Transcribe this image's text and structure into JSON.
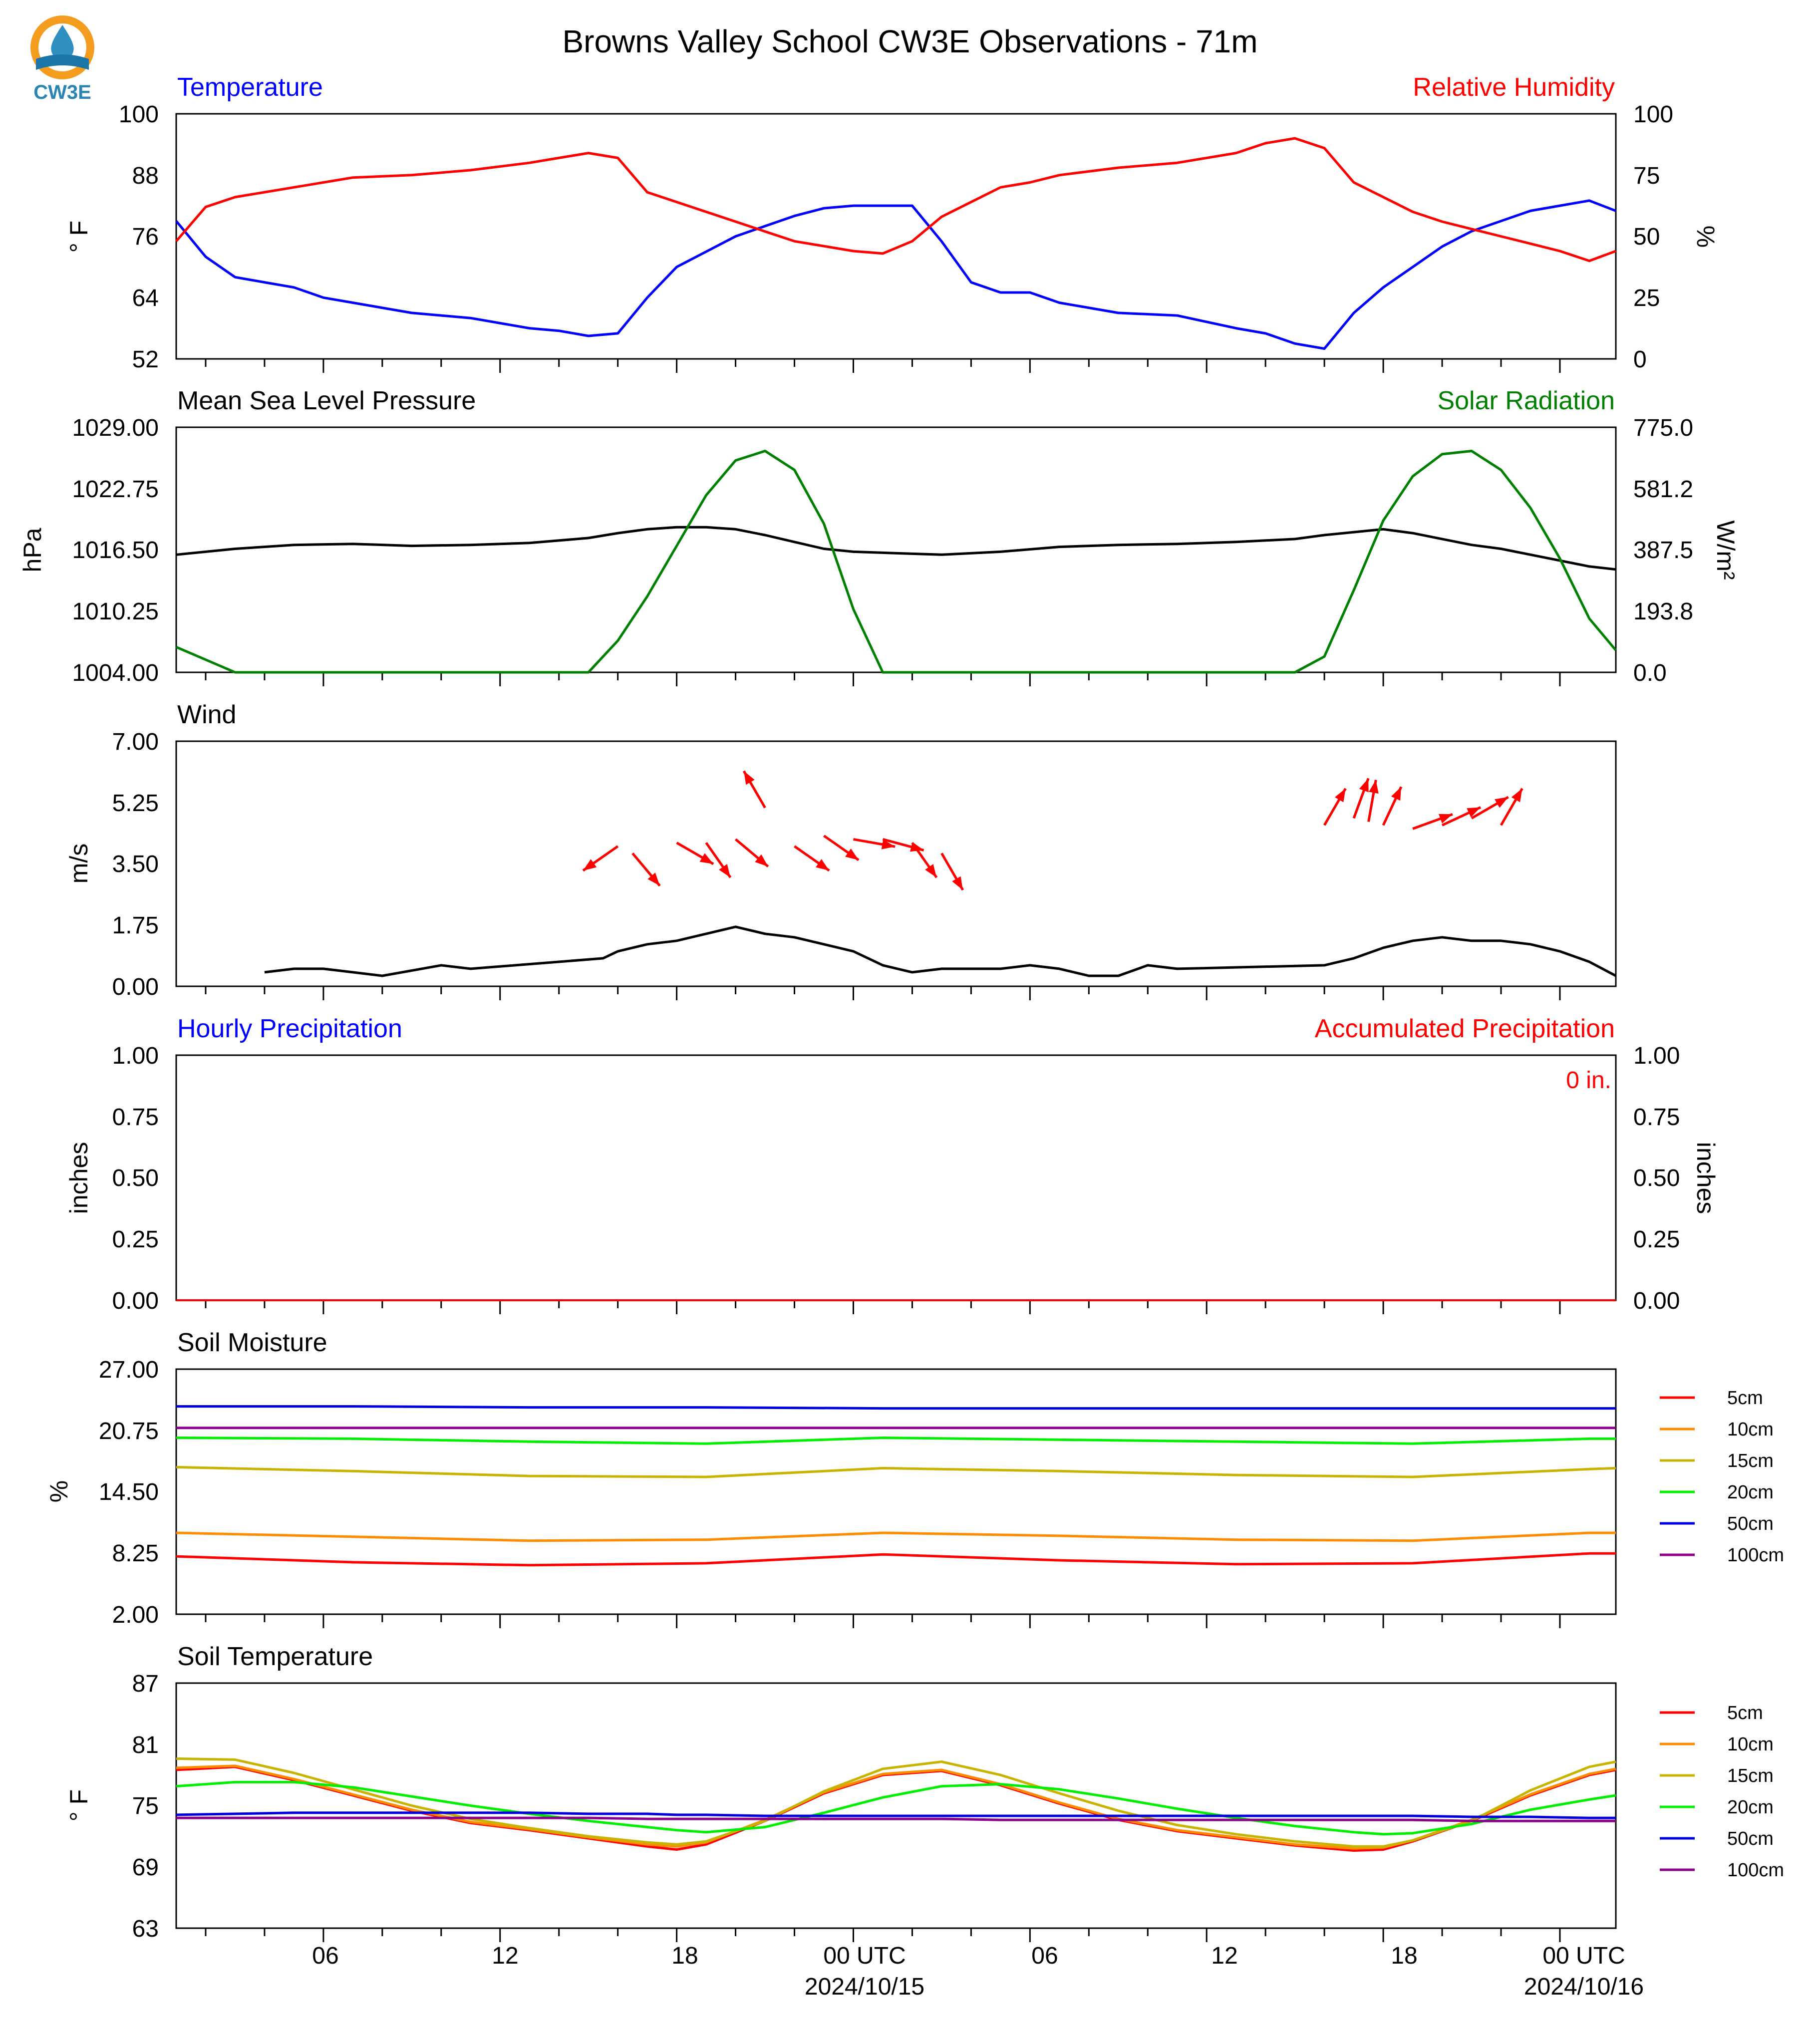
{
  "title": "Browns Valley School CW3E Observations - 71m",
  "logo": {
    "text": "CW3E",
    "colors": {
      "sun": "#f39c1e",
      "drop": "#2f8fbf",
      "wave": "#1b75a8",
      "text": "#2b85b4"
    }
  },
  "colors": {
    "blue": "#0000ff",
    "red": "#ff0000",
    "green": "#008000",
    "black": "#000000"
  },
  "x_axis": {
    "tick_labels": [
      "06",
      "12",
      "18",
      "00 UTC",
      "06",
      "12",
      "18",
      "00 UTC"
    ],
    "date_labels": [
      "2024/10/15",
      "2024/10/16"
    ]
  },
  "panels": {
    "temp_rh": {
      "left_title": "Temperature",
      "right_title": "Relative Humidity",
      "left_ylabel": "° F",
      "right_ylabel": "%",
      "left_ticks": [
        "52",
        "64",
        "76",
        "88",
        "100"
      ],
      "right_ticks": [
        "0",
        "25",
        "50",
        "75",
        "100"
      ]
    },
    "pressure_solar": {
      "left_title": "Mean Sea Level Pressure",
      "right_title": "Solar Radiation",
      "left_ylabel": "hPa",
      "right_ylabel": "W/m²",
      "left_ticks": [
        "1004.00",
        "1010.25",
        "1016.50",
        "1022.75",
        "1029.00"
      ],
      "right_ticks": [
        "0.0",
        "193.8",
        "387.5",
        "581.2",
        "775.0"
      ]
    },
    "wind": {
      "title": "Wind",
      "ylabel": "m/s",
      "ticks": [
        "0.00",
        "1.75",
        "3.50",
        "5.25",
        "7.00"
      ]
    },
    "precip": {
      "left_title": "Hourly Precipitation",
      "right_title": "Accumulated Precipitation",
      "left_ylabel": "inches",
      "right_ylabel": "inches",
      "left_ticks": [
        "0.00",
        "0.25",
        "0.50",
        "0.75",
        "1.00"
      ],
      "right_ticks": [
        "0.00",
        "0.25",
        "0.50",
        "0.75",
        "1.00"
      ],
      "annotation": "0 in."
    },
    "soil_moisture": {
      "title": "Soil Moisture",
      "ylabel": "%",
      "ticks": [
        "2.00",
        "8.25",
        "14.50",
        "20.75",
        "27.00"
      ],
      "legend": [
        "5cm",
        "10cm",
        "15cm",
        "20cm",
        "50cm",
        "100cm"
      ]
    },
    "soil_temp": {
      "title": "Soil Temperature",
      "ylabel": "° F",
      "ticks": [
        "63",
        "69",
        "75",
        "81",
        "87"
      ],
      "legend": [
        "5cm",
        "10cm",
        "15cm",
        "20cm",
        "50cm",
        "100cm"
      ]
    }
  },
  "chart_data": [
    {
      "type": "line",
      "panel": "temp_rh",
      "x_hours": [
        0,
        1,
        2,
        3,
        4,
        5,
        6,
        8,
        10,
        12,
        13,
        14,
        15,
        16,
        17,
        18,
        19,
        20,
        21,
        22,
        23,
        24,
        25,
        26,
        27,
        28,
        29,
        30,
        32,
        34,
        36,
        37,
        38,
        39,
        40,
        41,
        42,
        43,
        44,
        45,
        46,
        47,
        48,
        48.9
      ],
      "series": [
        {
          "name": "Temperature",
          "axis": "left",
          "ylim": [
            52,
            100
          ],
          "color": "#0000ff",
          "values": [
            79,
            72,
            68,
            67,
            66,
            64,
            63,
            61,
            60,
            58,
            57.5,
            56.5,
            57,
            64,
            70,
            73,
            76,
            78,
            80,
            81.5,
            82,
            82,
            82,
            75,
            67,
            65,
            65,
            63,
            61,
            60.5,
            58,
            57,
            55,
            54,
            61,
            66,
            70,
            74,
            77,
            79,
            81,
            82,
            83,
            81
          ]
        },
        {
          "name": "Relative Humidity",
          "axis": "right",
          "ylim": [
            0,
            100
          ],
          "color": "#ff0000",
          "values": [
            48,
            62,
            66,
            68,
            70,
            72,
            74,
            75,
            77,
            80,
            82,
            84,
            82,
            68,
            64,
            60,
            56,
            52,
            48,
            46,
            44,
            43,
            48,
            58,
            64,
            70,
            72,
            75,
            78,
            80,
            84,
            88,
            90,
            86,
            72,
            66,
            60,
            56,
            53,
            50,
            47,
            44,
            40,
            44
          ]
        }
      ]
    },
    {
      "type": "line",
      "panel": "pressure_solar",
      "x_hours": [
        0,
        2,
        4,
        6,
        8,
        10,
        12,
        14,
        15,
        16,
        17,
        18,
        19,
        20,
        21,
        22,
        23,
        24,
        25,
        26,
        28,
        30,
        32,
        34,
        36,
        38,
        39,
        40,
        41,
        42,
        43,
        44,
        45,
        46,
        47,
        48,
        48.9
      ],
      "series": [
        {
          "name": "Mean Sea Level Pressure",
          "axis": "left",
          "ylim": [
            1004,
            1029
          ],
          "color": "#000000",
          "values": [
            1016.0,
            1016.6,
            1017.0,
            1017.1,
            1016.9,
            1017.0,
            1017.2,
            1017.7,
            1018.2,
            1018.6,
            1018.8,
            1018.8,
            1018.6,
            1018.0,
            1017.3,
            1016.6,
            1016.3,
            1016.2,
            1016.1,
            1016.0,
            1016.3,
            1016.8,
            1017.0,
            1017.1,
            1017.3,
            1017.6,
            1018.0,
            1018.3,
            1018.6,
            1018.2,
            1017.6,
            1017.0,
            1016.6,
            1016.0,
            1015.4,
            1014.8,
            1014.5
          ]
        },
        {
          "name": "Solar Radiation",
          "axis": "right",
          "ylim": [
            0,
            775
          ],
          "color": "#008000",
          "values": [
            80,
            0,
            0,
            0,
            0,
            0,
            0,
            0,
            100,
            240,
            400,
            560,
            670,
            700,
            640,
            470,
            200,
            0,
            0,
            0,
            0,
            0,
            0,
            0,
            0,
            0,
            50,
            260,
            480,
            620,
            690,
            700,
            640,
            520,
            360,
            170,
            70
          ]
        }
      ]
    },
    {
      "type": "line",
      "panel": "wind",
      "ylim": [
        0,
        7
      ],
      "series": [
        {
          "name": "Wind",
          "color": "#000000",
          "x_hours": [
            3,
            4,
            5,
            6,
            7,
            9,
            10,
            14.5,
            15,
            16,
            17,
            18,
            19,
            20,
            21,
            22,
            23,
            24,
            25,
            26,
            27,
            28,
            29,
            30,
            31,
            32,
            33,
            34,
            39,
            40,
            41,
            42,
            43,
            44,
            45,
            46,
            47,
            48,
            48.9
          ],
          "values": [
            0.4,
            0.5,
            0.5,
            0.4,
            0.3,
            0.6,
            0.5,
            0.8,
            1.0,
            1.2,
            1.3,
            1.5,
            1.7,
            1.5,
            1.4,
            1.2,
            1.0,
            0.6,
            0.4,
            0.5,
            0.5,
            0.5,
            0.6,
            0.5,
            0.3,
            0.3,
            0.6,
            0.5,
            0.6,
            0.8,
            1.1,
            1.3,
            1.4,
            1.3,
            1.3,
            1.2,
            1.0,
            0.7,
            0.3
          ]
        },
        {
          "name": "wind vectors",
          "color": "#ff0000",
          "x_hours": [
            15,
            15.5,
            17,
            18,
            19,
            20,
            21,
            22,
            23,
            24,
            25,
            26,
            39,
            40,
            40.5,
            41,
            42,
            43,
            44,
            45
          ],
          "values": [
            4.0,
            3.8,
            4.1,
            4.1,
            4.2,
            5.1,
            4.0,
            4.3,
            4.2,
            4.2,
            4.1,
            3.8,
            4.6,
            4.8,
            4.7,
            4.6,
            4.5,
            4.6,
            4.8,
            4.6
          ]
        }
      ]
    },
    {
      "type": "line",
      "panel": "precip",
      "ylim": [
        0,
        1
      ],
      "series": [
        {
          "name": "Hourly Precipitation",
          "color": "#0000ff",
          "x_hours": [
            0,
            48.9
          ],
          "values": [
            0,
            0
          ]
        },
        {
          "name": "Accumulated Precipitation",
          "color": "#ff0000",
          "x_hours": [
            0,
            48.9
          ],
          "values": [
            0,
            0
          ]
        }
      ]
    },
    {
      "type": "line",
      "panel": "soil_moisture",
      "ylim": [
        2,
        27
      ],
      "x_hours": [
        0,
        6,
        12,
        18,
        24,
        30,
        36,
        42,
        48,
        48.9
      ],
      "series": [
        {
          "name": "5cm",
          "color": "#ff0000",
          "values": [
            7.9,
            7.3,
            7.0,
            7.2,
            8.1,
            7.5,
            7.1,
            7.2,
            8.2,
            8.2
          ]
        },
        {
          "name": "10cm",
          "color": "#ff8c00",
          "values": [
            10.3,
            9.9,
            9.5,
            9.6,
            10.3,
            10.0,
            9.6,
            9.5,
            10.3,
            10.3
          ]
        },
        {
          "name": "15cm",
          "color": "#c8b400",
          "values": [
            17.0,
            16.6,
            16.1,
            16.0,
            16.9,
            16.6,
            16.2,
            16.0,
            16.8,
            16.9
          ]
        },
        {
          "name": "20cm",
          "color": "#00ee00",
          "values": [
            20.0,
            19.9,
            19.6,
            19.4,
            20.0,
            19.8,
            19.6,
            19.4,
            19.9,
            19.9
          ]
        },
        {
          "name": "50cm",
          "color": "#0000dd",
          "values": [
            23.2,
            23.2,
            23.1,
            23.1,
            23.0,
            23.0,
            23.0,
            23.0,
            23.0,
            23.0
          ]
        },
        {
          "name": "100cm",
          "color": "#8b008b",
          "values": [
            21.0,
            21.0,
            21.0,
            21.0,
            21.0,
            21.0,
            21.0,
            21.0,
            21.0,
            21.0
          ]
        }
      ]
    },
    {
      "type": "line",
      "panel": "soil_temp",
      "ylim": [
        63,
        87
      ],
      "x_hours": [
        0,
        2,
        4,
        6,
        8,
        10,
        12,
        14,
        16,
        17,
        18,
        20,
        22,
        24,
        26,
        28,
        30,
        32,
        34,
        36,
        38,
        40,
        41,
        42,
        44,
        46,
        48,
        48.9
      ],
      "series": [
        {
          "name": "5cm",
          "color": "#ff0000",
          "values": [
            78.5,
            78.8,
            77.5,
            76.0,
            74.5,
            73.3,
            72.6,
            71.8,
            71.0,
            70.7,
            71.2,
            73.5,
            76.2,
            78.0,
            78.4,
            77.0,
            75.2,
            73.6,
            72.5,
            71.8,
            71.1,
            70.6,
            70.7,
            71.5,
            73.5,
            76.0,
            78.0,
            78.5
          ]
        },
        {
          "name": "10cm",
          "color": "#ff8c00",
          "values": [
            78.7,
            78.9,
            77.6,
            76.1,
            74.6,
            73.4,
            72.7,
            71.9,
            71.2,
            71.0,
            71.4,
            73.6,
            76.3,
            78.1,
            78.5,
            77.1,
            75.3,
            73.7,
            72.6,
            71.9,
            71.2,
            70.8,
            70.9,
            71.6,
            73.6,
            76.1,
            78.1,
            78.6
          ]
        },
        {
          "name": "15cm",
          "color": "#c8b400",
          "values": [
            79.6,
            79.5,
            78.2,
            76.6,
            75.0,
            73.7,
            72.8,
            72.0,
            71.4,
            71.2,
            71.5,
            73.5,
            76.4,
            78.6,
            79.3,
            78.0,
            76.2,
            74.5,
            73.1,
            72.2,
            71.5,
            71.0,
            71.0,
            71.6,
            73.5,
            76.5,
            78.8,
            79.3
          ]
        },
        {
          "name": "20cm",
          "color": "#00ee00",
          "values": [
            76.9,
            77.3,
            77.3,
            76.8,
            75.9,
            75.0,
            74.2,
            73.5,
            72.9,
            72.6,
            72.4,
            72.9,
            74.3,
            75.8,
            76.9,
            77.1,
            76.6,
            75.7,
            74.7,
            73.8,
            73.0,
            72.4,
            72.2,
            72.3,
            73.2,
            74.6,
            75.6,
            76.0
          ]
        },
        {
          "name": "50cm",
          "color": "#0000dd",
          "values": [
            74.1,
            74.2,
            74.3,
            74.3,
            74.3,
            74.3,
            74.3,
            74.2,
            74.2,
            74.1,
            74.1,
            74.0,
            74.0,
            74.0,
            74.0,
            74.0,
            74.0,
            74.0,
            74.0,
            74.0,
            74.0,
            74.0,
            74.0,
            74.0,
            73.9,
            73.9,
            73.8,
            73.8
          ]
        },
        {
          "name": "100cm",
          "color": "#8b008b",
          "values": [
            73.8,
            73.8,
            73.8,
            73.8,
            73.8,
            73.8,
            73.8,
            73.8,
            73.7,
            73.7,
            73.7,
            73.7,
            73.7,
            73.7,
            73.7,
            73.6,
            73.6,
            73.6,
            73.6,
            73.6,
            73.6,
            73.6,
            73.6,
            73.6,
            73.5,
            73.5,
            73.5,
            73.5
          ]
        }
      ]
    }
  ]
}
